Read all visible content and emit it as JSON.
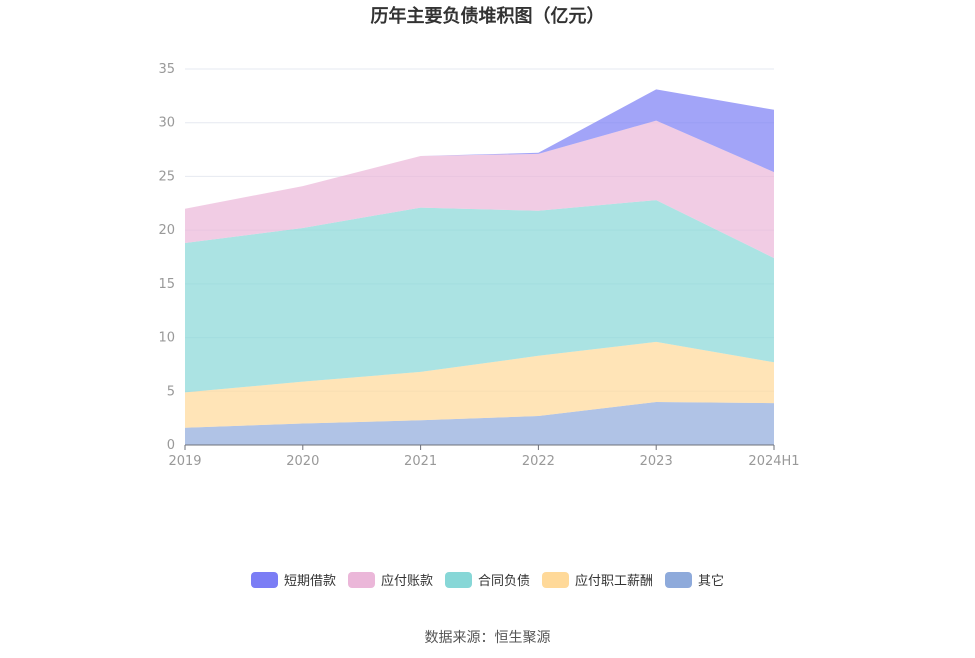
{
  "chart_data": {
    "type": "area",
    "stacked": true,
    "title": "历年主要负债堆积图（亿元）",
    "categories": [
      "2019",
      "2020",
      "2021",
      "2022",
      "2023",
      "2024H1"
    ],
    "ylim": [
      0,
      35
    ],
    "yticks": [
      0,
      5,
      10,
      15,
      20,
      25,
      30,
      35
    ],
    "grid": true,
    "legend_position": "bottom",
    "series": [
      {
        "name": "其它",
        "color": "#8eaadb",
        "values": [
          1.6,
          2.0,
          2.3,
          2.7,
          4.0,
          3.9
        ]
      },
      {
        "name": "应付职工薪酬",
        "color": "#ffd999",
        "values": [
          3.3,
          3.9,
          4.5,
          5.6,
          5.6,
          3.8
        ]
      },
      {
        "name": "合同负债",
        "color": "#87d7d7",
        "values": [
          13.9,
          14.3,
          15.3,
          13.5,
          13.2,
          9.7
        ]
      },
      {
        "name": "应付账款",
        "color": "#ebb7d9",
        "values": [
          3.2,
          3.9,
          4.8,
          5.3,
          7.4,
          8.0
        ]
      },
      {
        "name": "短期借款",
        "color": "#7b7df5",
        "values": [
          0,
          0,
          0,
          0.1,
          2.9,
          5.8
        ]
      }
    ],
    "legend_order": [
      "短期借款",
      "应付账款",
      "合同负债",
      "应付职工薪酬",
      "其它"
    ]
  },
  "source_text": "数据来源：恒生聚源"
}
